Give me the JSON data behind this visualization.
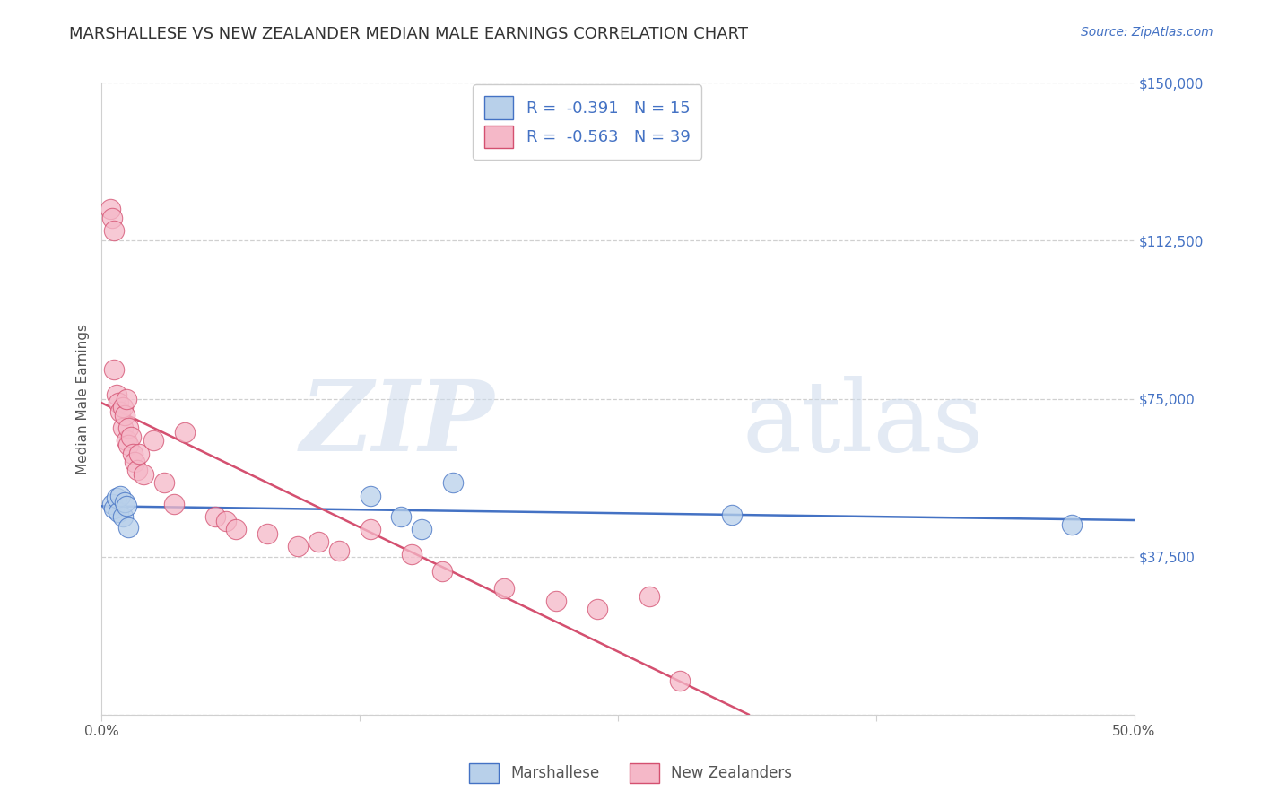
{
  "title": "MARSHALLESE VS NEW ZEALANDER MEDIAN MALE EARNINGS CORRELATION CHART",
  "source": "Source: ZipAtlas.com",
  "ylabel": "Median Male Earnings",
  "xlim": [
    0,
    0.5
  ],
  "ylim": [
    0,
    150000
  ],
  "xticks": [
    0.0,
    0.125,
    0.25,
    0.375,
    0.5
  ],
  "xtick_labels": [
    "0.0%",
    "",
    "",
    "",
    "50.0%"
  ],
  "yticks": [
    0,
    37500,
    75000,
    112500,
    150000
  ],
  "ytick_labels_right": [
    "",
    "$37,500",
    "$75,000",
    "$112,500",
    "$150,000"
  ],
  "blue_R": "-0.391",
  "blue_N": "15",
  "pink_R": "-0.563",
  "pink_N": "39",
  "blue_fill": "#b8d0ea",
  "pink_fill": "#f5b8c8",
  "blue_edge": "#4472c4",
  "pink_edge": "#d45070",
  "blue_line": "#4472c4",
  "pink_line": "#d45070",
  "label_blue": "Marshallese",
  "label_pink": "New Zealanders",
  "grid_color": "#d0d0d0",
  "text_color": "#555555",
  "title_color": "#333333",
  "source_color": "#4472c4",
  "blue_x": [
    0.005,
    0.006,
    0.007,
    0.008,
    0.009,
    0.01,
    0.011,
    0.012,
    0.013,
    0.13,
    0.145,
    0.155,
    0.17,
    0.305,
    0.47
  ],
  "blue_y": [
    50000,
    49000,
    51500,
    48000,
    52000,
    47000,
    50500,
    49500,
    44500,
    52000,
    47000,
    44000,
    55000,
    47500,
    45000
  ],
  "pink_x": [
    0.004,
    0.005,
    0.006,
    0.006,
    0.007,
    0.008,
    0.009,
    0.01,
    0.01,
    0.011,
    0.012,
    0.012,
    0.013,
    0.013,
    0.014,
    0.015,
    0.016,
    0.017,
    0.018,
    0.02,
    0.025,
    0.03,
    0.035,
    0.04,
    0.055,
    0.06,
    0.065,
    0.08,
    0.095,
    0.105,
    0.115,
    0.13,
    0.15,
    0.165,
    0.195,
    0.22,
    0.24,
    0.265,
    0.28
  ],
  "pink_y": [
    120000,
    118000,
    115000,
    82000,
    76000,
    74000,
    72000,
    73000,
    68000,
    71000,
    75000,
    65000,
    68000,
    64000,
    66000,
    62000,
    60000,
    58000,
    62000,
    57000,
    65000,
    55000,
    50000,
    67000,
    47000,
    46000,
    44000,
    43000,
    40000,
    41000,
    39000,
    44000,
    38000,
    34000,
    30000,
    27000,
    25000,
    28000,
    8000
  ]
}
